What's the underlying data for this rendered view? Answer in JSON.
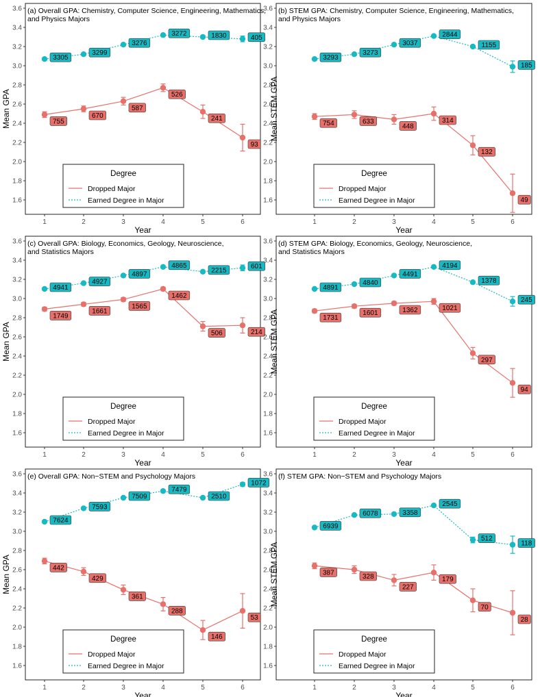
{
  "figure": {
    "colors": {
      "dropped": "#e8706a",
      "earned": "#17b9c3",
      "label_text": "#000000",
      "axis": "#333333"
    },
    "legend": {
      "title": "Degree",
      "entries": [
        "Dropped Major",
        "Earned Degree in Major"
      ]
    },
    "xlabel": "Year",
    "ylim": [
      1.45,
      3.65
    ],
    "yticks": [
      1.6,
      1.8,
      2.0,
      2.2,
      2.4,
      2.6,
      2.8,
      3.0,
      3.2,
      3.4,
      3.6
    ],
    "ytick_labels": [
      "1.6",
      "1.8",
      "2.0",
      "2.2",
      "2.4",
      "2.6",
      "2.8",
      "3.0",
      "3.2",
      "3.4",
      "3.6"
    ],
    "xticks": [
      1,
      2,
      3,
      4,
      5,
      6
    ],
    "xtick_labels": [
      "1",
      "2",
      "3",
      "4",
      "5",
      "6"
    ]
  },
  "chart_data": [
    {
      "type": "line",
      "title_lines": [
        "(a) Overall GPA: Chemistry, Computer Science, Engineering, Mathematics,",
        "and Physics Majors"
      ],
      "ylabel": "Mean GPA",
      "series": [
        {
          "name": "Dropped Major",
          "x": [
            1,
            2,
            3,
            4,
            5,
            6
          ],
          "y": [
            2.49,
            2.55,
            2.63,
            2.77,
            2.52,
            2.25
          ],
          "err": [
            0.03,
            0.03,
            0.04,
            0.04,
            0.07,
            0.14
          ],
          "n": [
            "755",
            "670",
            "587",
            "526",
            "241",
            "93"
          ]
        },
        {
          "name": "Earned Degree in Major",
          "x": [
            1,
            2,
            3,
            4,
            5,
            6
          ],
          "y": [
            3.07,
            3.12,
            3.22,
            3.32,
            3.3,
            3.28
          ],
          "err": [
            0.01,
            0.01,
            0.01,
            0.01,
            0.01,
            0.03
          ],
          "n": [
            "3305",
            "3299",
            "3276",
            "3272",
            "1830",
            "405"
          ]
        }
      ]
    },
    {
      "type": "line",
      "title_lines": [
        "(b) STEM GPA: Chemistry, Computer Science, Engineering, Mathematics,",
        "and Physics Majors"
      ],
      "ylabel": "Mean STEM GPA",
      "series": [
        {
          "name": "Dropped Major",
          "x": [
            1,
            2,
            3,
            4,
            5,
            6
          ],
          "y": [
            2.47,
            2.49,
            2.44,
            2.5,
            2.17,
            1.67
          ],
          "err": [
            0.03,
            0.04,
            0.05,
            0.07,
            0.1,
            0.2
          ],
          "n": [
            "754",
            "633",
            "448",
            "314",
            "132",
            "49"
          ]
        },
        {
          "name": "Earned Degree in Major",
          "x": [
            1,
            2,
            3,
            4,
            5,
            6
          ],
          "y": [
            3.07,
            3.12,
            3.22,
            3.31,
            3.2,
            2.99
          ],
          "err": [
            0.01,
            0.01,
            0.01,
            0.01,
            0.01,
            0.06
          ],
          "n": [
            "3293",
            "3273",
            "3037",
            "2844",
            "1155",
            "185"
          ]
        }
      ]
    },
    {
      "type": "line",
      "title_lines": [
        "(c) Overall GPA: Biology, Economics, Geology, Neuroscience,",
        "and Statistics Majors"
      ],
      "ylabel": "Mean GPA",
      "series": [
        {
          "name": "Dropped Major",
          "x": [
            1,
            2,
            3,
            4,
            5,
            6
          ],
          "y": [
            2.89,
            2.94,
            2.99,
            3.1,
            2.71,
            2.72
          ],
          "err": [
            0.02,
            0.02,
            0.02,
            0.02,
            0.05,
            0.08
          ],
          "n": [
            "1749",
            "1661",
            "1565",
            "1462",
            "506",
            "214"
          ]
        },
        {
          "name": "Earned Degree in Major",
          "x": [
            1,
            2,
            3,
            4,
            5,
            6
          ],
          "y": [
            3.1,
            3.16,
            3.24,
            3.33,
            3.28,
            3.32
          ],
          "err": [
            0.01,
            0.01,
            0.01,
            0.01,
            0.01,
            0.03
          ],
          "n": [
            "4941",
            "4927",
            "4897",
            "4865",
            "2215",
            "601"
          ]
        }
      ]
    },
    {
      "type": "line",
      "title_lines": [
        "(d) STEM GPA: Biology, Economics, Geology, Neuroscience,",
        "and Statistics Majors"
      ],
      "ylabel": "Mean STEM GPA",
      "series": [
        {
          "name": "Dropped Major",
          "x": [
            1,
            2,
            3,
            4,
            5,
            6
          ],
          "y": [
            2.87,
            2.92,
            2.95,
            2.97,
            2.43,
            2.12
          ],
          "err": [
            0.02,
            0.02,
            0.02,
            0.03,
            0.06,
            0.15
          ],
          "n": [
            "1731",
            "1601",
            "1362",
            "1021",
            "297",
            "94"
          ]
        },
        {
          "name": "Earned Degree in Major",
          "x": [
            1,
            2,
            3,
            4,
            5,
            6
          ],
          "y": [
            3.1,
            3.15,
            3.24,
            3.33,
            3.17,
            2.97
          ],
          "err": [
            0.01,
            0.01,
            0.01,
            0.01,
            0.01,
            0.05
          ],
          "n": [
            "4891",
            "4840",
            "4491",
            "4194",
            "1378",
            "245"
          ]
        }
      ]
    },
    {
      "type": "line",
      "title_lines": [
        "(e) Overall GPA: Non−STEM and Psychology Majors"
      ],
      "ylabel": "Mean GPA",
      "series": [
        {
          "name": "Dropped Major",
          "x": [
            1,
            2,
            3,
            4,
            5,
            6
          ],
          "y": [
            2.69,
            2.58,
            2.39,
            2.24,
            1.97,
            2.17
          ],
          "err": [
            0.03,
            0.04,
            0.05,
            0.07,
            0.1,
            0.18
          ],
          "n": [
            "442",
            "429",
            "361",
            "288",
            "146",
            "53"
          ]
        },
        {
          "name": "Earned Degree in Major",
          "x": [
            1,
            2,
            3,
            4,
            5,
            6
          ],
          "y": [
            3.1,
            3.24,
            3.35,
            3.42,
            3.35,
            3.49
          ],
          "err": [
            0.01,
            0.01,
            0.01,
            0.01,
            0.01,
            0.02
          ],
          "n": [
            "7624",
            "7593",
            "7509",
            "7479",
            "2510",
            "1072"
          ]
        }
      ]
    },
    {
      "type": "line",
      "title_lines": [
        "(f) STEM GPA: Non−STEM and Psychology Majors"
      ],
      "ylabel": "Mean STEM GPA",
      "series": [
        {
          "name": "Dropped Major",
          "x": [
            1,
            2,
            3,
            4,
            5,
            6
          ],
          "y": [
            2.64,
            2.6,
            2.49,
            2.57,
            2.28,
            2.15
          ],
          "err": [
            0.03,
            0.04,
            0.06,
            0.08,
            0.12,
            0.23
          ],
          "n": [
            "387",
            "328",
            "227",
            "179",
            "70",
            "28"
          ]
        },
        {
          "name": "Earned Degree in Major",
          "x": [
            1,
            2,
            3,
            4,
            5,
            6
          ],
          "y": [
            3.04,
            3.17,
            3.18,
            3.27,
            2.91,
            2.86
          ],
          "err": [
            0.01,
            0.01,
            0.01,
            0.01,
            0.03,
            0.09
          ],
          "n": [
            "6939",
            "6078",
            "3358",
            "2545",
            "512",
            "118"
          ]
        }
      ]
    }
  ]
}
